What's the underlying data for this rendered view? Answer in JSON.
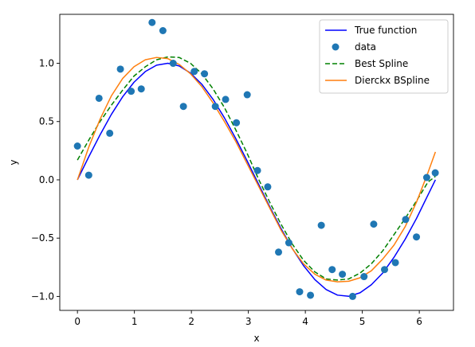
{
  "chart_data": {
    "type": "line",
    "title": "",
    "xlabel": "x",
    "ylabel": "y",
    "xlim": [
      -0.31,
      6.6
    ],
    "ylim": [
      -1.12,
      1.42
    ],
    "xticks": [
      0,
      1,
      2,
      3,
      4,
      5,
      6
    ],
    "yticks": [
      -1.0,
      -0.5,
      0.0,
      0.5,
      1.0
    ],
    "xtick_labels": [
      "0",
      "1",
      "2",
      "3",
      "4",
      "5",
      "6"
    ],
    "ytick_labels": [
      "−1.0",
      "−0.5",
      "0.0",
      "0.5",
      "1.0"
    ],
    "grid": false,
    "legend_position": "top-right",
    "x": [
      0.0,
      0.198,
      0.397,
      0.595,
      0.794,
      0.992,
      1.191,
      1.389,
      1.587,
      1.786,
      1.984,
      2.183,
      2.381,
      2.58,
      2.778,
      2.976,
      3.175,
      3.373,
      3.572,
      3.77,
      3.968,
      4.167,
      4.365,
      4.564,
      4.762,
      4.96,
      5.159,
      5.357,
      5.556,
      5.754,
      5.952,
      6.151,
      6.283
    ],
    "series": [
      {
        "name": "True function",
        "style": "solid",
        "color": "#0000ff",
        "values": [
          0.0,
          0.197,
          0.386,
          0.561,
          0.713,
          0.837,
          0.929,
          0.984,
          1.0,
          0.977,
          0.916,
          0.82,
          0.69,
          0.532,
          0.355,
          0.165,
          -0.033,
          -0.229,
          -0.417,
          -0.588,
          -0.736,
          -0.856,
          -0.941,
          -0.989,
          -0.999,
          -0.969,
          -0.9,
          -0.8,
          -0.665,
          -0.508,
          -0.33,
          -0.131,
          0.0
        ]
      },
      {
        "name": "Best Spline",
        "style": "dashed",
        "color": "#008000",
        "values": [
          0.17,
          0.34,
          0.5,
          0.64,
          0.77,
          0.89,
          0.97,
          1.03,
          1.055,
          1.05,
          1.0,
          0.91,
          0.78,
          0.62,
          0.43,
          0.23,
          0.01,
          -0.19,
          -0.38,
          -0.55,
          -0.69,
          -0.79,
          -0.85,
          -0.86,
          -0.85,
          -0.8,
          -0.72,
          -0.61,
          -0.47,
          -0.33,
          -0.18,
          -0.02,
          0.03
        ]
      },
      {
        "name": "Dierckx BSpline",
        "style": "solid",
        "color": "#ff7f0e",
        "values": [
          0.0,
          0.28,
          0.52,
          0.72,
          0.87,
          0.97,
          1.03,
          1.05,
          1.04,
          0.99,
          0.91,
          0.8,
          0.66,
          0.5,
          0.33,
          0.14,
          -0.05,
          -0.24,
          -0.43,
          -0.59,
          -0.72,
          -0.81,
          -0.86,
          -0.875,
          -0.87,
          -0.84,
          -0.78,
          -0.68,
          -0.56,
          -0.4,
          -0.19,
          0.06,
          0.24
        ]
      },
      {
        "name": "data",
        "style": "scatter",
        "color": "#1f77b4",
        "points": [
          [
            0.0,
            0.29
          ],
          [
            0.198,
            0.04
          ],
          [
            0.379,
            0.7
          ],
          [
            0.567,
            0.4
          ],
          [
            0.754,
            0.95
          ],
          [
            0.943,
            0.76
          ],
          [
            1.12,
            0.78
          ],
          [
            1.31,
            1.35
          ],
          [
            1.5,
            1.28
          ],
          [
            1.68,
            1.0
          ],
          [
            1.86,
            0.63
          ],
          [
            2.05,
            0.93
          ],
          [
            2.23,
            0.91
          ],
          [
            2.42,
            0.63
          ],
          [
            2.6,
            0.69
          ],
          [
            2.79,
            0.49
          ],
          [
            2.98,
            0.73
          ],
          [
            3.16,
            0.08
          ],
          [
            3.34,
            -0.06
          ],
          [
            3.53,
            -0.62
          ],
          [
            3.71,
            -0.54
          ],
          [
            3.9,
            -0.96
          ],
          [
            4.09,
            -0.99
          ],
          [
            4.28,
            -0.39
          ],
          [
            4.47,
            -0.77
          ],
          [
            4.65,
            -0.81
          ],
          [
            4.83,
            -1.0
          ],
          [
            5.03,
            -0.83
          ],
          [
            5.2,
            -0.38
          ],
          [
            5.39,
            -0.77
          ],
          [
            5.58,
            -0.71
          ],
          [
            5.76,
            -0.34
          ],
          [
            5.95,
            -0.49
          ],
          [
            6.13,
            0.02
          ],
          [
            6.28,
            0.06
          ]
        ]
      }
    ],
    "legend": [
      "True function",
      "data",
      "Best Spline",
      "Dierckx BSpline"
    ]
  }
}
